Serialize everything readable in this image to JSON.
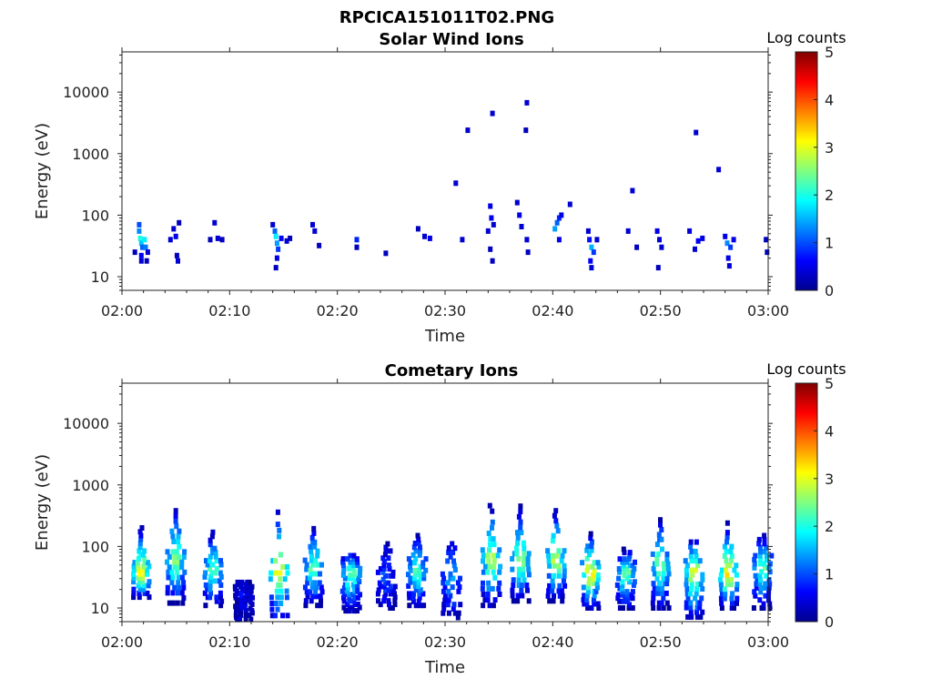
{
  "figure_title": "RPCICA151011T02.PNG",
  "chart_data": [
    {
      "type": "heatmap",
      "title": "Solar Wind Ions",
      "xlabel": "Time",
      "ylabel": "Energy (eV)",
      "x_tick_labels": [
        "02:00",
        "02:10",
        "02:20",
        "02:30",
        "02:40",
        "02:50",
        "03:00"
      ],
      "y_scale": "log",
      "y_tick_labels": [
        "10",
        "100",
        "1000",
        "10000"
      ],
      "ylim": [
        6,
        45000
      ],
      "colorbar": {
        "label": "Log counts",
        "range": [
          0,
          5
        ],
        "tick_labels": [
          "0",
          "1",
          "2",
          "3",
          "4",
          "5"
        ],
        "colormap": "jet"
      },
      "cells": [
        [
          1.2,
          25,
          0.3
        ],
        [
          1.6,
          70,
          1.0
        ],
        [
          1.6,
          55,
          1.3
        ],
        [
          1.7,
          42,
          2.0
        ],
        [
          1.8,
          35,
          1.6
        ],
        [
          1.9,
          30,
          1.1
        ],
        [
          1.8,
          22,
          0.6
        ],
        [
          1.8,
          18,
          0.4
        ],
        [
          2.1,
          40,
          1.8
        ],
        [
          2.2,
          30,
          1.2
        ],
        [
          2.4,
          25,
          0.4
        ],
        [
          2.3,
          18,
          0.3
        ],
        [
          4.5,
          40,
          0.4
        ],
        [
          4.8,
          60,
          0.4
        ],
        [
          5.0,
          45,
          0.5
        ],
        [
          5.3,
          75,
          0.3
        ],
        [
          5.1,
          22,
          0.3
        ],
        [
          5.2,
          18,
          0.4
        ],
        [
          8.6,
          75,
          0.4
        ],
        [
          8.2,
          40,
          0.3
        ],
        [
          8.9,
          42,
          0.4
        ],
        [
          9.3,
          40,
          0.3
        ],
        [
          14.0,
          70,
          0.4
        ],
        [
          14.2,
          55,
          1.1
        ],
        [
          14.3,
          45,
          1.8
        ],
        [
          14.4,
          35,
          1.4
        ],
        [
          14.5,
          28,
          0.9
        ],
        [
          14.4,
          20,
          0.5
        ],
        [
          14.3,
          14,
          0.3
        ],
        [
          14.8,
          42,
          0.6
        ],
        [
          15.3,
          38,
          0.4
        ],
        [
          15.6,
          42,
          0.3
        ],
        [
          17.7,
          70,
          0.4
        ],
        [
          17.9,
          55,
          0.4
        ],
        [
          18.3,
          32,
          0.3
        ],
        [
          21.8,
          40,
          0.8
        ],
        [
          21.8,
          30,
          0.3
        ],
        [
          24.5,
          24,
          0.3
        ],
        [
          27.5,
          60,
          0.3
        ],
        [
          28.1,
          45,
          0.4
        ],
        [
          28.6,
          42,
          0.5
        ],
        [
          31.0,
          330,
          0.4
        ],
        [
          31.6,
          40,
          0.4
        ],
        [
          32.1,
          2400,
          0.4
        ],
        [
          34.0,
          55,
          0.4
        ],
        [
          34.2,
          140,
          0.5
        ],
        [
          34.3,
          90,
          0.6
        ],
        [
          34.4,
          4500,
          0.4
        ],
        [
          34.5,
          70,
          0.4
        ],
        [
          34.2,
          28,
          0.3
        ],
        [
          34.4,
          18,
          0.3
        ],
        [
          36.7,
          160,
          0.4
        ],
        [
          36.9,
          100,
          0.5
        ],
        [
          37.1,
          65,
          0.4
        ],
        [
          37.6,
          6700,
          0.4
        ],
        [
          37.5,
          2400,
          0.3
        ],
        [
          37.6,
          40,
          0.4
        ],
        [
          37.7,
          25,
          0.3
        ],
        [
          40.2,
          60,
          1.4
        ],
        [
          40.4,
          75,
          1.1
        ],
        [
          40.6,
          90,
          0.8
        ],
        [
          40.8,
          100,
          0.5
        ],
        [
          40.6,
          40,
          0.5
        ],
        [
          41.6,
          150,
          0.4
        ],
        [
          43.3,
          55,
          0.4
        ],
        [
          43.4,
          40,
          0.7
        ],
        [
          43.6,
          30,
          1.5
        ],
        [
          43.8,
          25,
          0.9
        ],
        [
          43.5,
          18,
          0.6
        ],
        [
          44.1,
          40,
          0.4
        ],
        [
          43.6,
          14,
          0.4
        ],
        [
          47.0,
          55,
          0.4
        ],
        [
          47.4,
          250,
          0.4
        ],
        [
          47.8,
          30,
          0.3
        ],
        [
          49.7,
          55,
          0.5
        ],
        [
          49.9,
          40,
          0.4
        ],
        [
          50.1,
          30,
          0.4
        ],
        [
          49.8,
          14,
          0.3
        ],
        [
          52.7,
          55,
          0.4
        ],
        [
          53.3,
          2200,
          0.4
        ],
        [
          53.5,
          38,
          0.6
        ],
        [
          53.2,
          28,
          0.4
        ],
        [
          53.9,
          42,
          0.5
        ],
        [
          55.4,
          550,
          0.4
        ],
        [
          56.0,
          45,
          0.5
        ],
        [
          56.2,
          35,
          1.3
        ],
        [
          56.5,
          30,
          0.9
        ],
        [
          56.3,
          20,
          0.5
        ],
        [
          56.4,
          15,
          0.4
        ],
        [
          56.8,
          40,
          0.5
        ],
        [
          59.8,
          40,
          0.3
        ],
        [
          59.9,
          25,
          0.3
        ]
      ]
    },
    {
      "type": "heatmap",
      "title": "Cometary Ions",
      "xlabel": "Time",
      "ylabel": "Energy (eV)",
      "x_tick_labels": [
        "02:00",
        "02:10",
        "02:20",
        "02:30",
        "02:40",
        "02:50",
        "03:00"
      ],
      "y_scale": "log",
      "y_tick_labels": [
        "10",
        "100",
        "1000",
        "10000"
      ],
      "ylim": [
        6,
        45000
      ],
      "colorbar": {
        "label": "Log counts",
        "range": [
          0,
          5
        ],
        "tick_labels": [
          "0",
          "1",
          "2",
          "3",
          "4",
          "5"
        ],
        "colormap": "jet"
      },
      "clusters": [
        {
          "t": 1.8,
          "peak_e": 35,
          "peak": 2.9,
          "e_top": 200,
          "e_bottom": 15
        },
        {
          "t": 5.0,
          "peak_e": 60,
          "peak": 2.3,
          "e_top": 380,
          "e_bottom": 12
        },
        {
          "t": 8.5,
          "peak_e": 40,
          "peak": 2.1,
          "e_top": 170,
          "e_bottom": 11
        },
        {
          "t": 11.3,
          "peak_e": 20,
          "peak": 0.3,
          "e_top": 26,
          "e_bottom": 6
        },
        {
          "t": 14.6,
          "peak_e": 38,
          "peak": 2.8,
          "e_top": 360,
          "e_bottom": 6
        },
        {
          "t": 17.8,
          "peak_e": 42,
          "peak": 2.0,
          "e_top": 230,
          "e_bottom": 11
        },
        {
          "t": 21.3,
          "peak_e": 40,
          "peak": 2.2,
          "e_top": 80,
          "e_bottom": 9
        },
        {
          "t": 24.6,
          "peak_e": 30,
          "peak": 0.8,
          "e_top": 110,
          "e_bottom": 10
        },
        {
          "t": 27.4,
          "peak_e": 40,
          "peak": 2.0,
          "e_top": 150,
          "e_bottom": 11
        },
        {
          "t": 30.6,
          "peak_e": 30,
          "peak": 1.2,
          "e_top": 130,
          "e_bottom": 7
        },
        {
          "t": 34.3,
          "peak_e": 60,
          "peak": 2.5,
          "e_top": 460,
          "e_bottom": 11
        },
        {
          "t": 37.0,
          "peak_e": 55,
          "peak": 2.3,
          "e_top": 450,
          "e_bottom": 13
        },
        {
          "t": 40.3,
          "peak_e": 60,
          "peak": 2.6,
          "e_top": 380,
          "e_bottom": 13
        },
        {
          "t": 43.5,
          "peak_e": 35,
          "peak": 3.0,
          "e_top": 160,
          "e_bottom": 10
        },
        {
          "t": 46.8,
          "peak_e": 40,
          "peak": 2.1,
          "e_top": 90,
          "e_bottom": 10
        },
        {
          "t": 50.0,
          "peak_e": 50,
          "peak": 2.2,
          "e_top": 270,
          "e_bottom": 10
        },
        {
          "t": 53.1,
          "peak_e": 40,
          "peak": 2.6,
          "e_top": 140,
          "e_bottom": 6
        },
        {
          "t": 56.3,
          "peak_e": 35,
          "peak": 2.9,
          "e_top": 240,
          "e_bottom": 10
        },
        {
          "t": 59.5,
          "peak_e": 45,
          "peak": 2.0,
          "e_top": 150,
          "e_bottom": 10
        }
      ]
    }
  ]
}
